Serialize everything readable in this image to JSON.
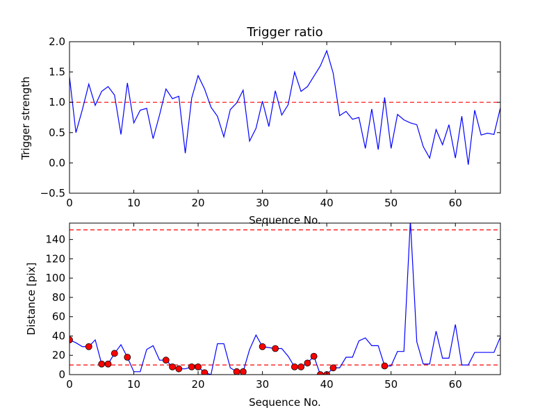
{
  "chart_data": [
    {
      "type": "line",
      "title": "Trigger ratio",
      "xlabel": "Sequence No.",
      "ylabel": "Trigger strength",
      "xlim": [
        0,
        67
      ],
      "ylim": [
        -0.5,
        2.0
      ],
      "xticks": [
        0,
        10,
        20,
        30,
        40,
        50,
        60
      ],
      "xtick_labels": [
        "0",
        "10",
        "20",
        "30",
        "40",
        "50",
        "60"
      ],
      "yticks": [
        -0.5,
        0.0,
        0.5,
        1.0,
        1.5,
        2.0
      ],
      "ytick_labels": [
        "−0.5",
        "0.0",
        "0.5",
        "1.0",
        "1.5",
        "2.0"
      ],
      "line_color": "#0000ff",
      "threshold_color": "#ff0000",
      "thresholds": [
        1.0
      ],
      "x": [
        0,
        1,
        2,
        3,
        4,
        5,
        6,
        7,
        8,
        9,
        10,
        11,
        12,
        13,
        14,
        15,
        16,
        17,
        18,
        19,
        20,
        21,
        22,
        23,
        24,
        25,
        26,
        27,
        28,
        29,
        30,
        31,
        32,
        33,
        34,
        35,
        36,
        37,
        38,
        39,
        40,
        41,
        42,
        43,
        44,
        45,
        46,
        47,
        48,
        49,
        50,
        51,
        52,
        53,
        54,
        55,
        56,
        57,
        58,
        59,
        60,
        61,
        62,
        63,
        64,
        65,
        66,
        67
      ],
      "y": [
        1.42,
        0.5,
        0.88,
        1.3,
        0.95,
        1.18,
        1.26,
        1.12,
        0.47,
        1.32,
        0.66,
        0.87,
        0.9,
        0.4,
        0.79,
        1.22,
        1.06,
        1.1,
        0.16,
        1.07,
        1.44,
        1.22,
        0.92,
        0.77,
        0.43,
        0.88,
        0.99,
        1.2,
        0.36,
        0.57,
        1.02,
        0.6,
        1.19,
        0.79,
        0.96,
        1.5,
        1.18,
        1.26,
        1.43,
        1.6,
        1.85,
        1.48,
        0.78,
        0.85,
        0.72,
        0.75,
        0.24,
        0.89,
        0.22,
        1.08,
        0.24,
        0.8,
        0.71,
        0.66,
        0.63,
        0.27,
        0.08,
        0.55,
        0.3,
        0.63,
        0.08,
        0.77,
        -0.03,
        0.87,
        0.46,
        0.49,
        0.47,
        0.91
      ]
    },
    {
      "type": "line",
      "title": "",
      "xlabel": "Sequence No.",
      "ylabel": "Distance [pix]",
      "xlim": [
        0,
        67
      ],
      "ylim": [
        0,
        157
      ],
      "xticks": [
        0,
        10,
        20,
        30,
        40,
        50,
        60
      ],
      "xtick_labels": [
        "0",
        "10",
        "20",
        "30",
        "40",
        "50",
        "60"
      ],
      "yticks": [
        0,
        20,
        40,
        60,
        80,
        100,
        120,
        140
      ],
      "ytick_labels": [
        "0",
        "20",
        "40",
        "60",
        "80",
        "100",
        "120",
        "140"
      ],
      "line_color": "#0000ff",
      "threshold_color": "#ff0000",
      "thresholds": [
        10,
        150
      ],
      "marker_color": "#ff0000",
      "x": [
        0,
        1,
        2,
        3,
        4,
        5,
        6,
        7,
        8,
        9,
        10,
        11,
        12,
        13,
        14,
        15,
        16,
        17,
        18,
        19,
        20,
        21,
        22,
        23,
        24,
        25,
        26,
        27,
        28,
        29,
        30,
        31,
        32,
        33,
        34,
        35,
        36,
        37,
        38,
        39,
        40,
        41,
        42,
        43,
        44,
        45,
        46,
        47,
        48,
        49,
        50,
        51,
        52,
        53,
        54,
        55,
        56,
        57,
        58,
        59,
        60,
        61,
        62,
        63,
        64,
        65,
        66,
        67
      ],
      "y": [
        36,
        33,
        29,
        29,
        36,
        11,
        11,
        22,
        31,
        18,
        3,
        3,
        26,
        30,
        15,
        15,
        8,
        6,
        6,
        8,
        8,
        2,
        0,
        32,
        32,
        7,
        3,
        3,
        26,
        41,
        29,
        28,
        27,
        27,
        19,
        8,
        8,
        12,
        19,
        0,
        0,
        7,
        7,
        18,
        18,
        35,
        38,
        30,
        30,
        9,
        9,
        24,
        24,
        160,
        34,
        11,
        11,
        45,
        17,
        17,
        52,
        10,
        10,
        23,
        23,
        23,
        23,
        39
      ],
      "markers_x": [
        0,
        3,
        5,
        6,
        7,
        9,
        15,
        16,
        17,
        19,
        20,
        21,
        26,
        27,
        30,
        32,
        35,
        36,
        37,
        38,
        39,
        40,
        41,
        49
      ],
      "markers_y": [
        36,
        29,
        11,
        11,
        22,
        18,
        15,
        8,
        6,
        8,
        8,
        2,
        3,
        3,
        29,
        27,
        8,
        8,
        12,
        19,
        0,
        0,
        7,
        9
      ]
    }
  ]
}
